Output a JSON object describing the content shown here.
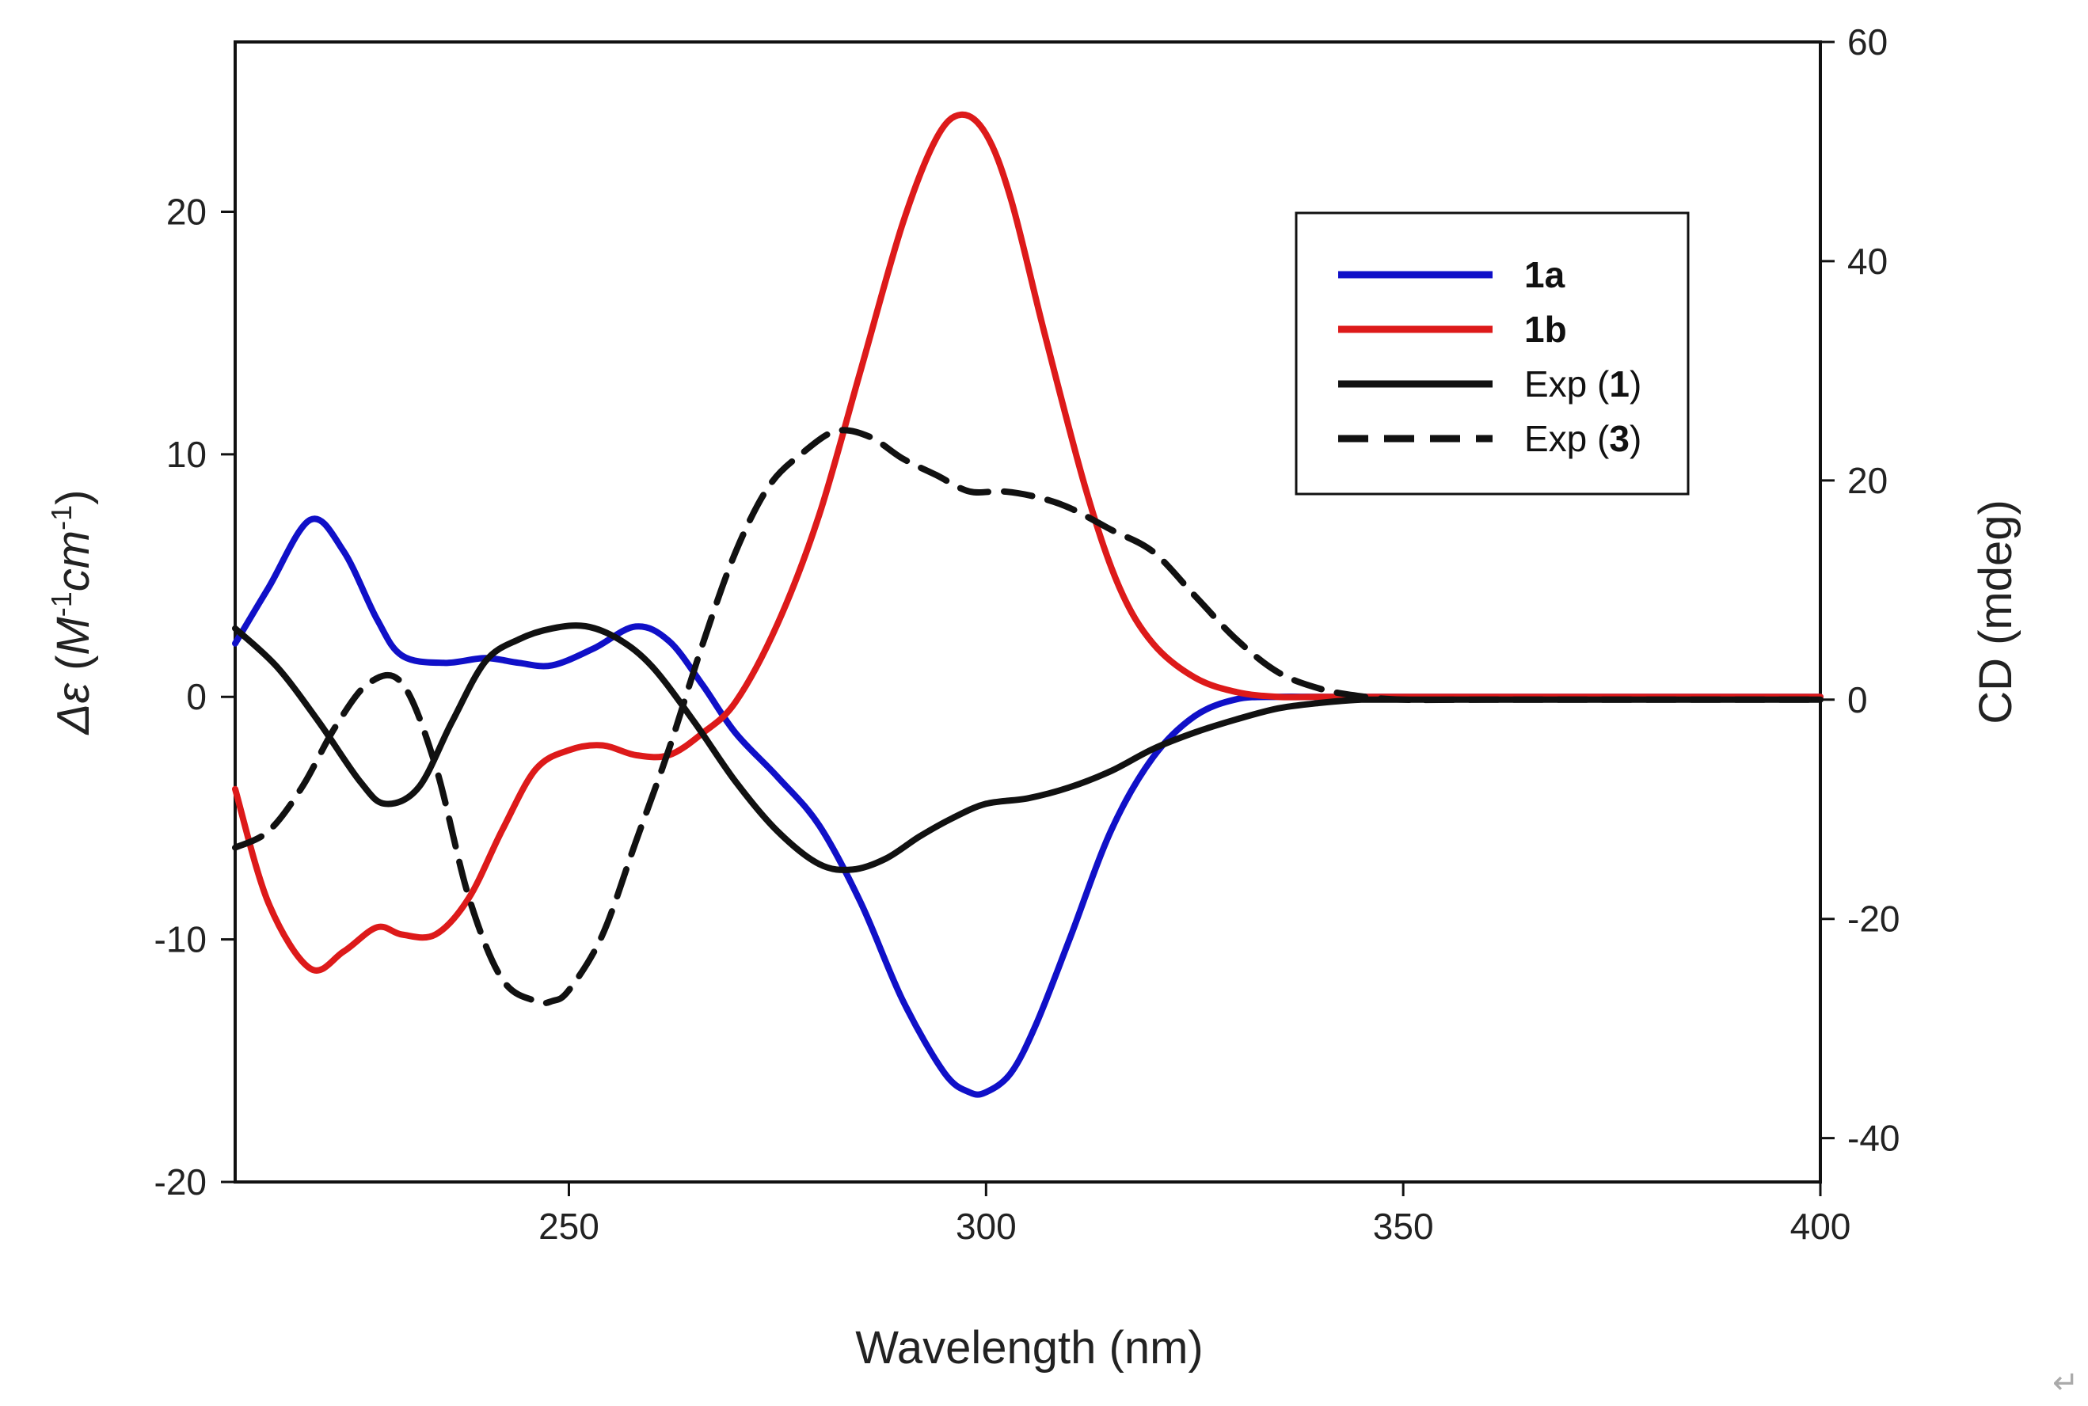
{
  "chart_data": {
    "type": "line",
    "title": "",
    "xlabel": "Wavelength (nm)",
    "ylabel_left": {
      "symbol": "Δε",
      "open": " (",
      "m": "M",
      "exp1": "-1",
      "cm": "cm",
      "exp2": "-1",
      "close": ")"
    },
    "ylabel_right": "CD (mdeg)",
    "xlim": [
      210,
      400
    ],
    "ylim_left": [
      -20,
      27
    ],
    "ylim_right": [
      -44,
      60
    ],
    "x_ticks": [
      250,
      300,
      350,
      400
    ],
    "y_left_ticks": [
      -20,
      -10,
      0,
      10,
      20
    ],
    "y_right_ticks": [
      -40,
      -20,
      0,
      20,
      40,
      60
    ],
    "grid": false,
    "legend_position": "top-right",
    "series": [
      {
        "name": "1a",
        "label_main": "1a",
        "label_suffix": "",
        "bold": true,
        "axis": "left",
        "color": "#1010c8",
        "dash": "",
        "x": [
          210,
          214,
          219,
          223,
          227,
          230,
          235,
          240,
          244,
          248,
          253,
          258,
          262,
          266,
          270,
          275,
          280,
          285,
          290,
          295,
          298,
          300,
          303,
          306,
          310,
          315,
          320,
          325,
          330,
          335,
          340,
          350,
          360,
          380,
          400
        ],
        "y": [
          2.2,
          4.5,
          7.3,
          6.0,
          3.2,
          1.7,
          1.4,
          1.6,
          1.4,
          1.3,
          2.0,
          2.9,
          2.3,
          0.5,
          -1.5,
          -3.3,
          -5.3,
          -8.5,
          -12.5,
          -15.5,
          -16.3,
          -16.3,
          -15.5,
          -13.5,
          -10.0,
          -5.5,
          -2.5,
          -0.8,
          -0.1,
          0,
          0,
          0,
          0,
          0,
          0
        ]
      },
      {
        "name": "1b",
        "label_main": "1b",
        "label_suffix": "",
        "bold": true,
        "axis": "left",
        "color": "#dd1a1a",
        "dash": "",
        "x": [
          210,
          214,
          219,
          223,
          227,
          230,
          234,
          238,
          242,
          246,
          250,
          254,
          258,
          262,
          266,
          270,
          275,
          280,
          285,
          290,
          294,
          297,
          300,
          303,
          307,
          312,
          316,
          320,
          325,
          330,
          335,
          340,
          350,
          400
        ],
        "y": [
          -3.8,
          -8.5,
          -11.2,
          -10.5,
          -9.5,
          -9.8,
          -9.8,
          -8.3,
          -5.5,
          -3.0,
          -2.2,
          -2.0,
          -2.4,
          -2.4,
          -1.5,
          -0.2,
          3.0,
          7.5,
          13.5,
          19.5,
          23.0,
          24.0,
          23.2,
          20.5,
          15.0,
          8.5,
          4.5,
          2.2,
          0.8,
          0.2,
          0,
          0,
          0,
          0
        ]
      },
      {
        "name": "Exp (1)",
        "label_main": "Exp (",
        "label_num": "1",
        "label_suffix": ")",
        "bold": false,
        "axis": "right",
        "color": "#111111",
        "dash": "",
        "x": [
          210,
          215,
          220,
          225,
          228,
          232,
          236,
          240,
          244,
          248,
          252,
          256,
          260,
          265,
          270,
          275,
          280,
          284,
          288,
          292,
          296,
          300,
          305,
          310,
          315,
          320,
          325,
          330,
          335,
          340,
          345,
          350,
          400
        ],
        "y": [
          6.5,
          3.0,
          -2.0,
          -7.5,
          -9.5,
          -8.0,
          -2.0,
          3.5,
          5.5,
          6.5,
          6.7,
          5.5,
          3.0,
          -2.0,
          -7.5,
          -12.0,
          -15.0,
          -15.5,
          -14.5,
          -12.5,
          -10.8,
          -9.5,
          -9.0,
          -8.0,
          -6.5,
          -4.5,
          -3.0,
          -1.8,
          -0.8,
          -0.3,
          0,
          0,
          0
        ]
      },
      {
        "name": "Exp (3)",
        "label_main": "Exp (",
        "label_num": "3",
        "label_suffix": ")",
        "bold": false,
        "axis": "right",
        "color": "#111111",
        "dash": "36,20",
        "x": [
          210,
          214,
          218,
          222,
          226,
          230,
          234,
          238,
          242,
          246,
          248,
          250,
          254,
          258,
          262,
          266,
          270,
          274,
          278,
          282,
          286,
          290,
          294,
          298,
          302,
          306,
          310,
          315,
          320,
          325,
          330,
          335,
          340,
          345,
          350,
          360,
          400
        ],
        "y": [
          -13.5,
          -12.0,
          -8.0,
          -2.5,
          1.5,
          1.5,
          -6.0,
          -18.0,
          -25.5,
          -27.5,
          -27.5,
          -26.5,
          -21.5,
          -13.0,
          -4.5,
          5.0,
          13.5,
          19.5,
          22.5,
          24.5,
          24.0,
          22.0,
          20.5,
          19.0,
          19.0,
          18.5,
          17.5,
          15.5,
          13.5,
          9.5,
          5.5,
          2.5,
          1.0,
          0.3,
          0,
          0,
          0
        ]
      }
    ]
  },
  "decor": {
    "return_glyph": "↵"
  }
}
